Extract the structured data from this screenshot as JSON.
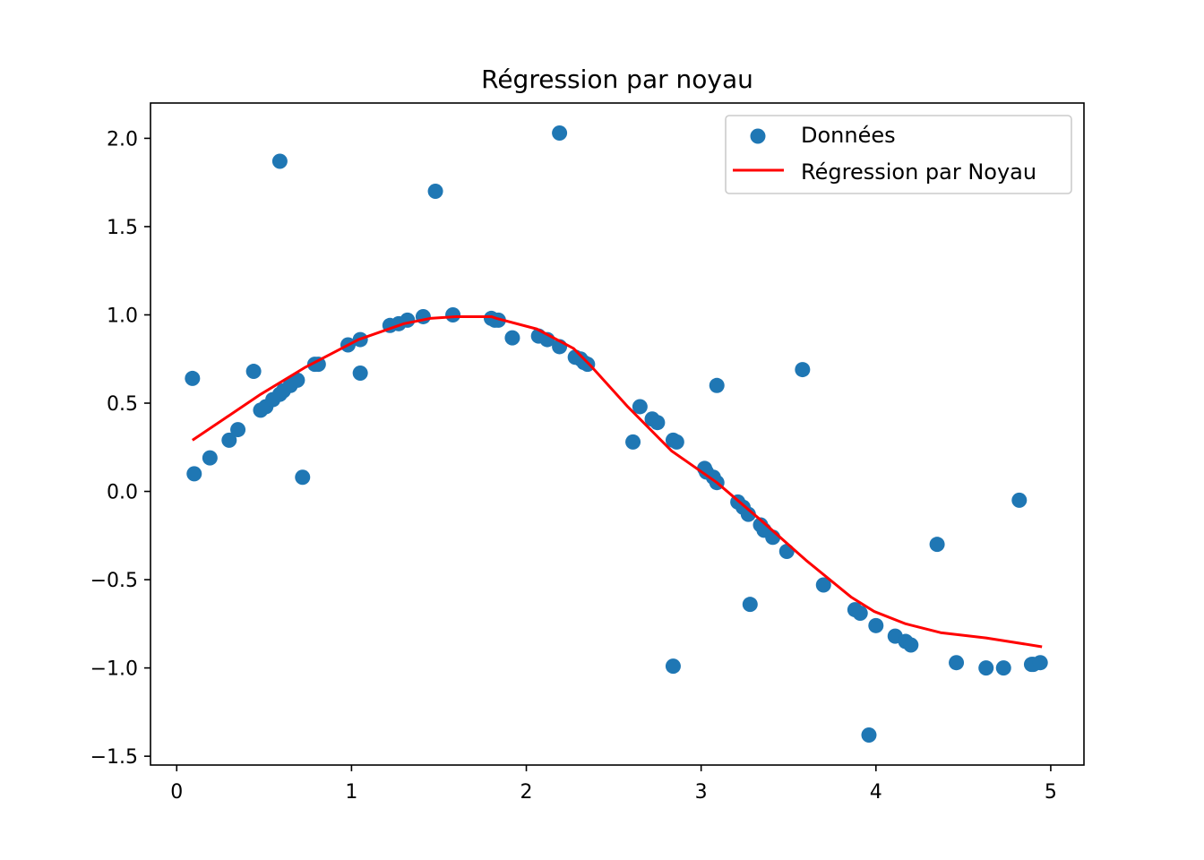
{
  "chart_data": {
    "type": "scatter",
    "title": "Régression par noyau",
    "xlabel": "",
    "ylabel": "",
    "xlim": [
      -0.15,
      5.19
    ],
    "ylim": [
      -1.55,
      2.2
    ],
    "grid": false,
    "x_ticks": [
      0,
      1,
      2,
      3,
      4,
      5
    ],
    "x_tick_labels": [
      "0",
      "1",
      "2",
      "3",
      "4",
      "5"
    ],
    "y_ticks": [
      2.0,
      1.5,
      1.0,
      0.5,
      0.0,
      -0.5,
      -1.0,
      -1.5
    ],
    "y_tick_labels": [
      "2.0",
      "1.5",
      "1.0",
      "0.5",
      "0.0",
      "−0.5",
      "−1.0",
      "−1.5"
    ],
    "legend_position": "top-right",
    "legend": [
      "Données",
      "Régression par Noyau"
    ],
    "colors": {
      "scatter": "#1f77b4",
      "line": "#ff0000"
    },
    "series": [
      {
        "name": "Données",
        "kind": "scatter",
        "x": [
          0.09,
          0.1,
          0.19,
          0.3,
          0.35,
          0.44,
          0.48,
          0.51,
          0.55,
          0.59,
          0.59,
          0.61,
          0.65,
          0.69,
          0.72,
          0.79,
          0.81,
          0.98,
          1.05,
          1.05,
          1.22,
          1.27,
          1.32,
          1.41,
          1.48,
          1.58,
          1.8,
          1.82,
          1.84,
          1.92,
          2.07,
          2.12,
          2.19,
          2.19,
          2.28,
          2.31,
          2.33,
          2.35,
          2.61,
          2.65,
          2.72,
          2.75,
          2.84,
          2.86,
          2.84,
          3.02,
          3.03,
          3.07,
          3.09,
          3.09,
          3.21,
          3.24,
          3.27,
          3.28,
          3.34,
          3.36,
          3.41,
          3.49,
          3.58,
          3.7,
          3.88,
          3.91,
          3.96,
          4.0,
          4.11,
          4.17,
          4.2,
          4.35,
          4.46,
          4.63,
          4.73,
          4.82,
          4.89,
          4.9,
          4.94
        ],
        "y": [
          0.64,
          0.1,
          0.19,
          0.29,
          0.35,
          0.68,
          0.46,
          0.48,
          0.52,
          1.87,
          0.55,
          0.57,
          0.6,
          0.63,
          0.08,
          0.72,
          0.72,
          0.83,
          0.86,
          0.67,
          0.94,
          0.95,
          0.97,
          0.99,
          1.7,
          1.0,
          0.98,
          0.97,
          0.97,
          0.87,
          0.88,
          0.86,
          0.82,
          2.03,
          0.76,
          0.75,
          0.73,
          0.72,
          0.28,
          0.48,
          0.41,
          0.39,
          0.29,
          0.28,
          -0.99,
          0.13,
          0.11,
          0.08,
          0.6,
          0.05,
          -0.06,
          -0.09,
          -0.13,
          -0.64,
          -0.19,
          -0.22,
          -0.26,
          -0.34,
          0.69,
          -0.53,
          -0.67,
          -0.69,
          -1.38,
          -0.76,
          -0.82,
          -0.85,
          -0.87,
          -0.3,
          -0.97,
          -1.0,
          -1.0,
          -0.05,
          -0.98,
          -0.98,
          -0.97
        ]
      },
      {
        "name": "Régression par Noyau",
        "kind": "line",
        "x": [
          0.09,
          0.27,
          0.48,
          0.73,
          1.04,
          1.3,
          1.45,
          1.6,
          1.8,
          1.83,
          2.06,
          2.27,
          2.37,
          2.58,
          2.83,
          3.09,
          3.35,
          3.6,
          3.86,
          3.99,
          4.17,
          4.37,
          4.63,
          4.95
        ],
        "y": [
          0.29,
          0.41,
          0.55,
          0.7,
          0.86,
          0.95,
          0.98,
          0.99,
          0.99,
          0.98,
          0.92,
          0.81,
          0.71,
          0.48,
          0.23,
          0.05,
          -0.17,
          -0.39,
          -0.6,
          -0.68,
          -0.75,
          -0.8,
          -0.83,
          -0.88
        ]
      }
    ]
  }
}
